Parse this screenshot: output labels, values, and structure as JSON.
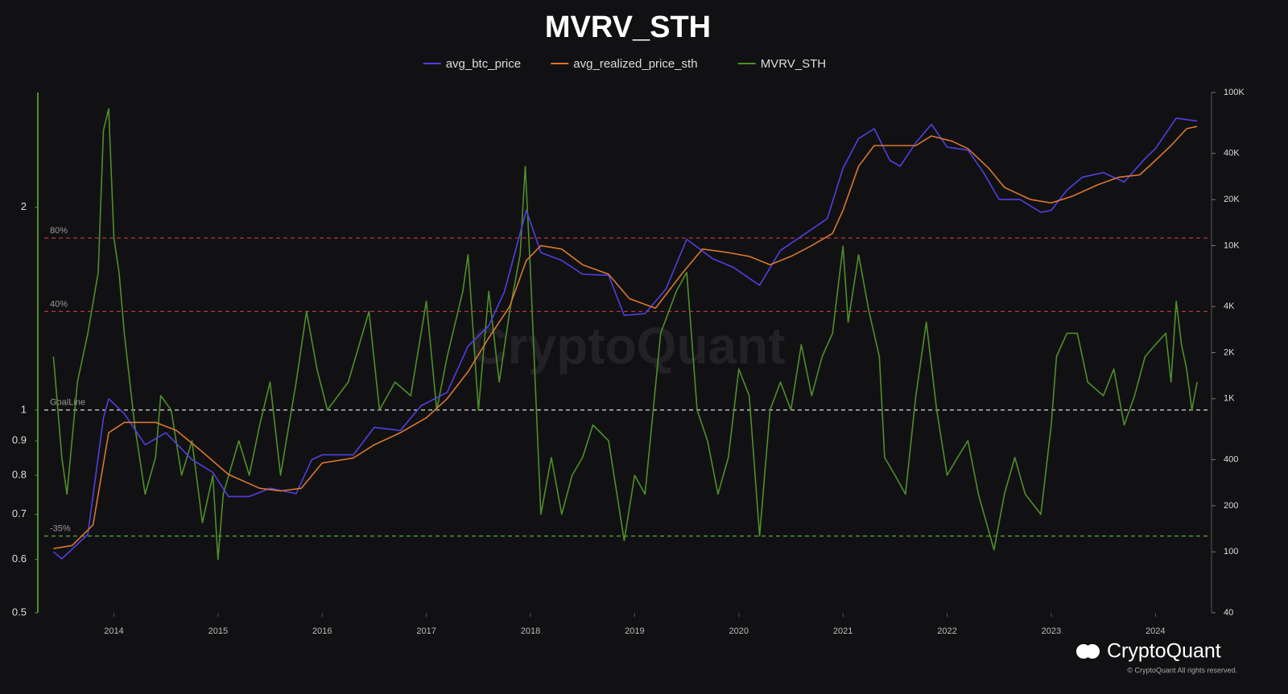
{
  "chart_data": {
    "type": "line",
    "title": "MVRV_STH",
    "watermark": "CryptoQuant",
    "brand": "CryptoQuant",
    "copyright": "© CryptoQuant All rights reserved.",
    "log_scale": true,
    "legend": "top",
    "xlim": [
      2013.27,
      2024.5
    ],
    "xticks": [
      2014,
      2015,
      2016,
      2017,
      2018,
      2019,
      2020,
      2021,
      2022,
      2023,
      2024
    ],
    "ylim": [
      0.5,
      2.96
    ],
    "yticks": [
      0.5,
      0.6,
      0.7,
      0.8,
      0.9,
      1,
      2
    ],
    "y2lim": [
      40,
      100000
    ],
    "y2ticks": [
      40,
      100,
      200,
      400,
      {
        "value": 1000,
        "label": "1K"
      },
      {
        "value": 2000,
        "label": "2K"
      },
      {
        "value": 4000,
        "label": "4K"
      },
      {
        "value": 10000,
        "label": "10K"
      },
      {
        "value": 20000,
        "label": "20K"
      },
      {
        "value": 40000,
        "label": "40K"
      },
      {
        "value": 100000,
        "label": "100K"
      }
    ],
    "reference_lines": [
      {
        "label": "80%",
        "value": 1.8,
        "color": "#b03a3a"
      },
      {
        "label": "40%",
        "value": 1.4,
        "color": "#b03a3a"
      },
      {
        "label": "GoalLine",
        "value": 1,
        "color": "#cccccc"
      },
      {
        "label": "-35%",
        "value": 0.65,
        "color": "#5e9a3a"
      }
    ],
    "series": [
      {
        "name": "avg_btc_price",
        "color": "#5040e0",
        "axis": "y2",
        "x": [
          2013.42,
          2013.5,
          2013.75,
          2013.9,
          2013.95,
          2014.1,
          2014.3,
          2014.5,
          2014.75,
          2014.95,
          2015.1,
          2015.3,
          2015.5,
          2015.75,
          2015.9,
          2016.0,
          2016.3,
          2016.5,
          2016.75,
          2016.95,
          2017.2,
          2017.4,
          2017.6,
          2017.75,
          2017.96,
          2018.1,
          2018.3,
          2018.5,
          2018.75,
          2018.9,
          2019.1,
          2019.3,
          2019.5,
          2019.75,
          2019.95,
          2020.2,
          2020.4,
          2020.6,
          2020.85,
          2021.0,
          2021.15,
          2021.3,
          2021.45,
          2021.55,
          2021.7,
          2021.85,
          2022.0,
          2022.2,
          2022.35,
          2022.5,
          2022.7,
          2022.9,
          2023.0,
          2023.15,
          2023.3,
          2023.5,
          2023.7,
          2023.9,
          2024.0,
          2024.2,
          2024.4
        ],
        "values": [
          100,
          90,
          130,
          750,
          1000,
          800,
          500,
          600,
          400,
          330,
          230,
          230,
          260,
          240,
          400,
          430,
          430,
          650,
          620,
          900,
          1100,
          2200,
          3000,
          5000,
          17000,
          9000,
          8000,
          6500,
          6400,
          3500,
          3600,
          5200,
          11000,
          8200,
          7200,
          5500,
          9300,
          11500,
          15000,
          32000,
          50000,
          58000,
          36000,
          33000,
          47000,
          62000,
          44000,
          42000,
          30000,
          20000,
          20000,
          16500,
          17000,
          23000,
          28000,
          30000,
          26000,
          37000,
          43000,
          68000,
          65000
        ]
      },
      {
        "name": "avg_realized_price_sth",
        "color": "#d9772f",
        "axis": "y2",
        "x": [
          2013.42,
          2013.6,
          2013.8,
          2013.95,
          2014.1,
          2014.4,
          2014.6,
          2014.85,
          2015.1,
          2015.4,
          2015.6,
          2015.8,
          2016.0,
          2016.3,
          2016.5,
          2016.75,
          2017.0,
          2017.2,
          2017.4,
          2017.6,
          2017.8,
          2017.96,
          2018.1,
          2018.3,
          2018.5,
          2018.75,
          2018.95,
          2019.2,
          2019.45,
          2019.65,
          2019.9,
          2020.1,
          2020.3,
          2020.5,
          2020.7,
          2020.9,
          2021.0,
          2021.15,
          2021.3,
          2021.5,
          2021.7,
          2021.85,
          2022.05,
          2022.2,
          2022.4,
          2022.55,
          2022.8,
          2023.0,
          2023.2,
          2023.45,
          2023.65,
          2023.85,
          2024.0,
          2024.15,
          2024.3,
          2024.4
        ],
        "values": [
          105,
          110,
          150,
          600,
          700,
          700,
          620,
          450,
          320,
          260,
          250,
          260,
          380,
          410,
          500,
          600,
          750,
          1000,
          1500,
          2500,
          4000,
          8000,
          10000,
          9500,
          7500,
          6500,
          4500,
          3900,
          6500,
          9500,
          9000,
          8500,
          7500,
          8500,
          10000,
          12000,
          17000,
          33000,
          45000,
          45000,
          45000,
          52000,
          48000,
          43000,
          32000,
          24000,
          20000,
          19000,
          21000,
          25000,
          28000,
          29000,
          36000,
          45000,
          58000,
          60000
        ]
      },
      {
        "name": "MVRV_STH",
        "color": "#4e8f2a",
        "axis": "y",
        "x": [
          2013.42,
          2013.5,
          2013.55,
          2013.65,
          2013.75,
          2013.85,
          2013.9,
          2013.95,
          2014.0,
          2014.05,
          2014.1,
          2014.2,
          2014.3,
          2014.4,
          2014.45,
          2014.55,
          2014.65,
          2014.75,
          2014.85,
          2014.95,
          2015.0,
          2015.05,
          2015.2,
          2015.3,
          2015.4,
          2015.5,
          2015.6,
          2015.75,
          2015.85,
          2015.95,
          2016.05,
          2016.25,
          2016.45,
          2016.55,
          2016.7,
          2016.85,
          2016.95,
          2017.0,
          2017.1,
          2017.2,
          2017.35,
          2017.4,
          2017.5,
          2017.6,
          2017.7,
          2017.8,
          2017.9,
          2017.95,
          2018.0,
          2018.1,
          2018.2,
          2018.3,
          2018.4,
          2018.5,
          2018.6,
          2018.75,
          2018.9,
          2019.0,
          2019.1,
          2019.25,
          2019.4,
          2019.5,
          2019.6,
          2019.7,
          2019.8,
          2019.9,
          2020.0,
          2020.1,
          2020.2,
          2020.3,
          2020.4,
          2020.5,
          2020.6,
          2020.7,
          2020.8,
          2020.9,
          2021.0,
          2021.05,
          2021.15,
          2021.25,
          2021.35,
          2021.4,
          2021.5,
          2021.6,
          2021.7,
          2021.8,
          2021.9,
          2022.0,
          2022.1,
          2022.2,
          2022.3,
          2022.45,
          2022.55,
          2022.65,
          2022.75,
          2022.9,
          2023.0,
          2023.05,
          2023.15,
          2023.25,
          2023.35,
          2023.5,
          2023.6,
          2023.7,
          2023.8,
          2023.9,
          2024.0,
          2024.1,
          2024.15,
          2024.2,
          2024.25,
          2024.3,
          2024.35,
          2024.4
        ],
        "values": [
          1.2,
          0.85,
          0.75,
          1.1,
          1.3,
          1.6,
          2.6,
          2.8,
          1.8,
          1.6,
          1.3,
          0.95,
          0.75,
          0.85,
          1.05,
          1.0,
          0.8,
          0.9,
          0.68,
          0.8,
          0.6,
          0.75,
          0.9,
          0.8,
          0.95,
          1.1,
          0.8,
          1.1,
          1.4,
          1.15,
          1.0,
          1.1,
          1.4,
          1.0,
          1.1,
          1.05,
          1.3,
          1.45,
          1.0,
          1.2,
          1.5,
          1.7,
          1.0,
          1.5,
          1.1,
          1.4,
          1.7,
          2.3,
          1.6,
          0.7,
          0.85,
          0.7,
          0.8,
          0.85,
          0.95,
          0.9,
          0.64,
          0.8,
          0.75,
          1.3,
          1.5,
          1.6,
          1.0,
          0.9,
          0.75,
          0.85,
          1.15,
          1.05,
          0.65,
          1.0,
          1.1,
          1.0,
          1.25,
          1.05,
          1.2,
          1.3,
          1.75,
          1.35,
          1.7,
          1.4,
          1.2,
          0.85,
          0.8,
          0.75,
          1.05,
          1.35,
          1.0,
          0.8,
          0.85,
          0.9,
          0.75,
          0.62,
          0.75,
          0.85,
          0.75,
          0.7,
          0.95,
          1.2,
          1.3,
          1.3,
          1.1,
          1.05,
          1.15,
          0.95,
          1.05,
          1.2,
          1.25,
          1.3,
          1.1,
          1.45,
          1.25,
          1.15,
          1.0,
          1.1
        ]
      }
    ]
  }
}
